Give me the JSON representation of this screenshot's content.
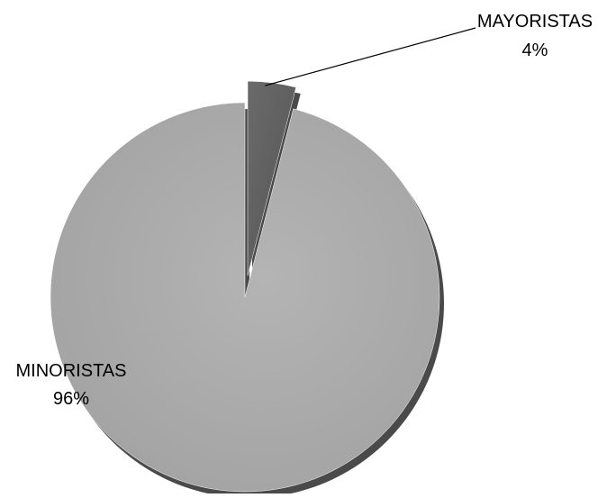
{
  "chart_data": {
    "type": "pie",
    "title": "",
    "categories": [
      "MAYORISTAS",
      "MINORISTAS"
    ],
    "values": [
      4,
      96
    ],
    "labels": [
      {
        "category": "MAYORISTAS",
        "percent": "4%"
      },
      {
        "category": "MINORISTAS",
        "percent": "96%"
      }
    ],
    "slice_colors": [
      "#5f5f5f",
      "#a9a9a9"
    ],
    "exploded": [
      "MAYORISTAS"
    ],
    "legend": "none",
    "style": "3d-shadowed"
  }
}
